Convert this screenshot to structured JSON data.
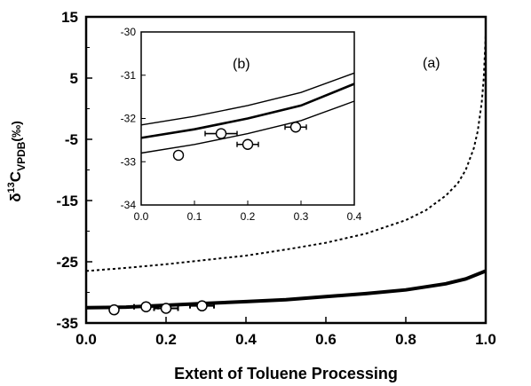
{
  "chart_data": [
    {
      "panel": "(a)",
      "type": "line",
      "xlabel": "Extent of Toluene Processing",
      "ylabel_main": "δ",
      "ylabel_sup": "13",
      "ylabel_c": "C",
      "ylabel_sub": "VPDB",
      "ylabel_unit": "(‰)",
      "xlim": [
        0.0,
        1.0
      ],
      "ylim": [
        -35,
        15
      ],
      "xticks": [
        "0.0",
        "0.2",
        "0.4",
        "0.6",
        "0.8",
        "1.0"
      ],
      "yticks": [
        "-35",
        "-25",
        "-15",
        "-5",
        "5",
        "15"
      ],
      "series": [
        {
          "style": "dotted",
          "x": [
            0.0,
            0.1,
            0.2,
            0.3,
            0.4,
            0.5,
            0.6,
            0.7,
            0.8,
            0.85,
            0.9,
            0.93,
            0.95,
            0.97,
            0.98,
            0.99,
            0.995,
            1.0
          ],
          "y": [
            -26.5,
            -26.0,
            -25.4,
            -24.7,
            -24.0,
            -23.0,
            -21.9,
            -20.4,
            -18.2,
            -16.6,
            -14.2,
            -12.2,
            -10.0,
            -6.5,
            -3.7,
            1.0,
            5.0,
            12.0
          ]
        },
        {
          "style": "thick",
          "x": [
            0.0,
            0.1,
            0.2,
            0.3,
            0.4,
            0.5,
            0.6,
            0.7,
            0.8,
            0.9,
            0.95,
            1.0
          ],
          "y": [
            -32.5,
            -32.4,
            -32.1,
            -31.8,
            -31.5,
            -31.2,
            -30.7,
            -30.2,
            -29.6,
            -28.6,
            -27.8,
            -26.5
          ]
        }
      ],
      "points": [
        {
          "x": 0.07,
          "y": -32.85,
          "xerr": 0.01
        },
        {
          "x": 0.15,
          "y": -32.35,
          "xerr": 0.03
        },
        {
          "x": 0.2,
          "y": -32.6,
          "xerr": 0.03
        },
        {
          "x": 0.29,
          "y": -32.2,
          "xerr": 0.03
        }
      ]
    },
    {
      "panel": "(b)",
      "type": "line",
      "xlim": [
        0.0,
        0.4
      ],
      "ylim": [
        -34,
        -30
      ],
      "xticks": [
        "0.0",
        "0.1",
        "0.2",
        "0.3",
        "0.4"
      ],
      "yticks": [
        "-34",
        "-33",
        "-32",
        "-31",
        "-30"
      ],
      "series": [
        {
          "style": "upper",
          "x": [
            0.0,
            0.1,
            0.2,
            0.3,
            0.4
          ],
          "y": [
            -32.15,
            -31.95,
            -31.7,
            -31.4,
            -30.95
          ]
        },
        {
          "style": "center",
          "x": [
            0.0,
            0.1,
            0.2,
            0.3,
            0.4
          ],
          "y": [
            -32.45,
            -32.25,
            -32.0,
            -31.7,
            -31.2
          ]
        },
        {
          "style": "lower",
          "x": [
            0.0,
            0.1,
            0.2,
            0.3,
            0.4
          ],
          "y": [
            -32.8,
            -32.6,
            -32.35,
            -32.05,
            -31.6
          ]
        }
      ],
      "points": [
        {
          "x": 0.07,
          "y": -32.85,
          "xerr": 0.005
        },
        {
          "x": 0.15,
          "y": -32.35,
          "xerr": 0.03
        },
        {
          "x": 0.2,
          "y": -32.6,
          "xerr": 0.02
        },
        {
          "x": 0.29,
          "y": -32.2,
          "xerr": 0.02
        }
      ]
    }
  ]
}
